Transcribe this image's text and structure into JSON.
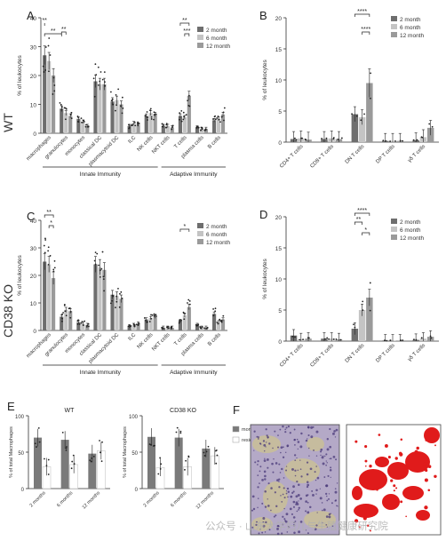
{
  "figure": {
    "row_labels": {
      "wt": "WT",
      "ko": "CD38 KO"
    },
    "watermark": "公众号 · 山东大学妇儿与生殖健康研究院",
    "colors": {
      "2m": "#6e6e6e",
      "6m": "#c4c4c4",
      "12m": "#9a9a9a",
      "dot": "#222222",
      "tissue_bg": "#b4a9c7",
      "tissue_dark": "#4a3a7a",
      "tissue_tan": "#c9bf96",
      "red_region": "#e01b1b"
    }
  },
  "chart_data": [
    {
      "panel": "A",
      "type": "bar",
      "ylabel": "% of leukocytes",
      "ylim": [
        0,
        40
      ],
      "yticks": [
        0,
        10,
        20,
        30,
        40
      ],
      "categories": [
        "macrophages",
        "granulocytes",
        "monocytes",
        "classical DC",
        "plasmacytoid DC",
        "ILC",
        "NK cells",
        "NKT cells",
        "T cells",
        "plasma cells",
        "B cells"
      ],
      "series": [
        {
          "name": "2 month",
          "values": [
            27,
            8.5,
            5,
            18,
            11,
            2.5,
            6,
            2.5,
            6,
            2,
            4.5
          ]
        },
        {
          "name": "6 month",
          "values": [
            25,
            7,
            4,
            17,
            11.5,
            3.5,
            7,
            2.5,
            5.5,
            1.5,
            5
          ]
        },
        {
          "name": "12 month",
          "values": [
            20,
            6,
            2.5,
            17,
            10,
            3,
            6.5,
            2,
            13,
            1.5,
            6.5
          ]
        }
      ],
      "significance": [
        {
          "label": "**",
          "from": 0,
          "to": 0
        },
        {
          "label": "**",
          "from": 0,
          "to": 1
        },
        {
          "label": "**",
          "from": 1,
          "to": 1
        },
        {
          "label": "**",
          "from": 8,
          "to": 8
        },
        {
          "label": "***",
          "from": 8,
          "to": 8
        }
      ],
      "groups": [
        {
          "label": "Innate Immunity",
          "from": 0,
          "to": 6
        },
        {
          "label": "Adaptive Immunity",
          "from": 7,
          "to": 10
        }
      ],
      "legend": [
        "2 month",
        "6 month",
        "12 month"
      ]
    },
    {
      "panel": "B",
      "type": "bar",
      "ylabel": "% of leukocytes",
      "ylim": [
        0,
        20
      ],
      "yticks": [
        0,
        5,
        10,
        15,
        20
      ],
      "categories": [
        "CD4+ T cells",
        "CD8+ T cells",
        "DN T cells",
        "DP T cells",
        "γδ T cells"
      ],
      "series": [
        {
          "name": "2 month",
          "values": [
            0.5,
            0.5,
            4.5,
            0.2,
            0.3
          ]
        },
        {
          "name": "6 month",
          "values": [
            0.6,
            0.6,
            4,
            0.2,
            0.8
          ]
        },
        {
          "name": "12 month",
          "values": [
            0.4,
            0.5,
            9.5,
            0.2,
            2.3
          ]
        }
      ],
      "significance": [
        {
          "label": "****",
          "from": 2,
          "to": 2
        },
        {
          "label": "****",
          "from": 2,
          "to": 2
        }
      ],
      "legend": [
        "2 month",
        "6 month",
        "12 month"
      ]
    },
    {
      "panel": "C",
      "type": "bar",
      "ylabel": "% of leukocytes",
      "ylim": [
        0,
        40
      ],
      "yticks": [
        0,
        10,
        20,
        30,
        40
      ],
      "categories": [
        "macrophages",
        "granulocytes",
        "monocytes",
        "classical DC",
        "plasmacytoid DC",
        "ILC",
        "NK cells",
        "NKT cells",
        "T cells",
        "plasma cells",
        "B cells"
      ],
      "series": [
        {
          "name": "2 month",
          "values": [
            25,
            5,
            3,
            24,
            13,
            1.5,
            4,
            1,
            3.5,
            2,
            6
          ]
        },
        {
          "name": "6 month",
          "values": [
            24,
            7.5,
            2.5,
            23,
            12.5,
            2,
            4.5,
            1,
            5.5,
            1,
            3
          ]
        },
        {
          "name": "12 month",
          "values": [
            19,
            7,
            2,
            22,
            11.5,
            2.5,
            5,
            1,
            8.5,
            1,
            4
          ]
        }
      ],
      "significance": [
        {
          "label": "**",
          "from": 0,
          "to": 0
        },
        {
          "label": "*",
          "from": 0,
          "to": 0
        },
        {
          "label": "*",
          "from": 8,
          "to": 8
        }
      ],
      "groups": [
        {
          "label": "Innate Immunity",
          "from": 0,
          "to": 6
        },
        {
          "label": "Adaptive Immunity",
          "from": 7,
          "to": 10
        }
      ],
      "legend": [
        "2 month",
        "6 month",
        "12 month"
      ]
    },
    {
      "panel": "D",
      "type": "bar",
      "ylabel": "% of leukocytes",
      "ylim": [
        0,
        20
      ],
      "yticks": [
        0,
        5,
        10,
        15,
        20
      ],
      "categories": [
        "CD4+ T cells",
        "CD8+ T cells",
        "DN T cells",
        "DP T cells",
        "γδ T cells"
      ],
      "series": [
        {
          "name": "2 month",
          "values": [
            0.9,
            0.4,
            2,
            0.1,
            0.2
          ]
        },
        {
          "name": "6 month",
          "values": [
            0.3,
            0.4,
            5,
            0.1,
            0.4
          ]
        },
        {
          "name": "12 month",
          "values": [
            0.4,
            0.3,
            7,
            0.1,
            0.7
          ]
        }
      ],
      "significance": [
        {
          "label": "****",
          "from": 2,
          "to": 2
        },
        {
          "label": "**",
          "from": 2,
          "to": 2
        },
        {
          "label": "*",
          "from": 2,
          "to": 2
        }
      ],
      "legend": [
        "2 month",
        "6 month",
        "12 month"
      ]
    },
    {
      "panel": "E",
      "type": "bar",
      "title": "WT",
      "ylabel": "% of total Macrophages",
      "ylim": [
        0,
        100
      ],
      "yticks": [
        0,
        50,
        100
      ],
      "categories": [
        "2 months",
        "6 months",
        "12 months"
      ],
      "series": [
        {
          "name": "monocyte-derived macrophages",
          "values": [
            70,
            67,
            48
          ]
        },
        {
          "name": "resident macrophages",
          "values": [
            30,
            33,
            52
          ]
        }
      ]
    },
    {
      "panel": "E2",
      "type": "bar",
      "title": "CD38 KO",
      "ylabel": "% of total Macrophages",
      "ylim": [
        0,
        100
      ],
      "yticks": [
        0,
        50,
        100
      ],
      "categories": [
        "2 months",
        "6 months",
        "12 months"
      ],
      "series": [
        {
          "name": "monocyte-derived macrophages",
          "values": [
            71,
            70,
            55
          ]
        },
        {
          "name": "resident macrophages",
          "values": [
            29,
            30,
            45
          ]
        }
      ],
      "legend": [
        "monocyte-derived macrophages",
        "resident macrophages"
      ]
    },
    {
      "panel": "F",
      "type": "image"
    }
  ]
}
